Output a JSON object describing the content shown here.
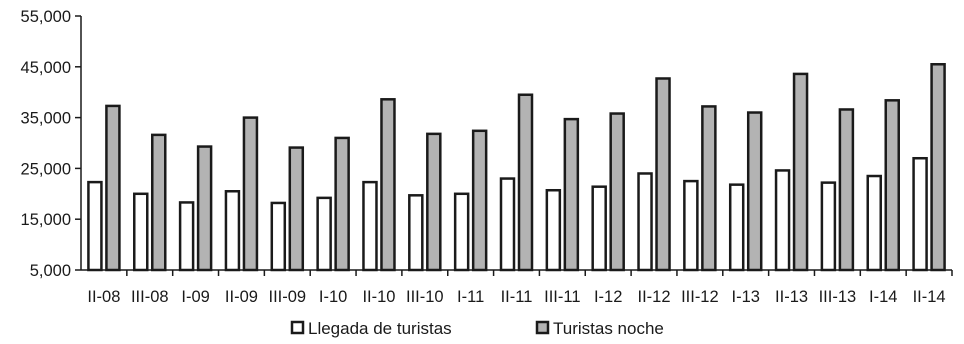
{
  "chart_data": {
    "type": "bar",
    "title": "",
    "xlabel": "",
    "ylabel": "",
    "ylim": [
      5000,
      55000
    ],
    "yticks": [
      5000,
      15000,
      25000,
      35000,
      45000,
      55000
    ],
    "ytick_labels": [
      "5,000",
      "15,000",
      "25,000",
      "35,000",
      "45,000",
      "55,000"
    ],
    "grid": false,
    "legend_position": "bottom",
    "categories": [
      "II-08",
      "III-08",
      "I-09",
      "II-09",
      "III-09",
      "I-10",
      "II-10",
      "III-10",
      "I-11",
      "II-11",
      "III-11",
      "I-12",
      "II-12",
      "III-12",
      "I-13",
      "II-13",
      "III-13",
      "I-14",
      "II-14"
    ],
    "series": [
      {
        "name": "Llegada de turistas",
        "color": "#ffffff",
        "values": [
          22300,
          20000,
          18300,
          20500,
          18200,
          19200,
          22300,
          19700,
          20000,
          23000,
          20700,
          21400,
          24000,
          22500,
          21800,
          24600,
          22200,
          23500,
          27000
        ]
      },
      {
        "name": "Turistas noche",
        "color": "#b3b3b3",
        "values": [
          37300,
          31600,
          29300,
          35000,
          29100,
          31000,
          38600,
          31800,
          32400,
          39500,
          34700,
          35800,
          42700,
          37200,
          36000,
          43600,
          36600,
          38400,
          45500
        ]
      }
    ]
  }
}
